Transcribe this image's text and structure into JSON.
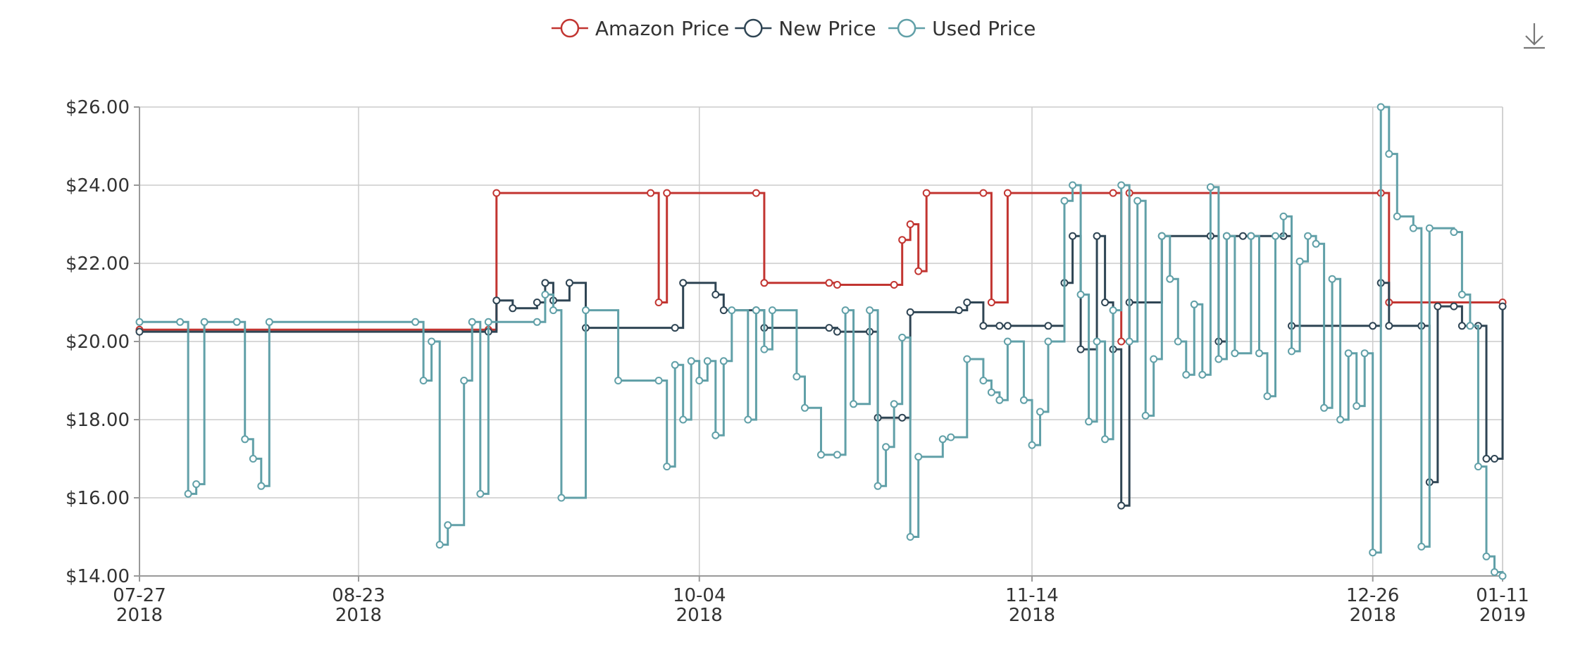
{
  "colors": {
    "amazon": "#c23531",
    "new": "#2f4554",
    "used": "#61a0a8",
    "grid": "#cccccc",
    "axis": "#999999"
  },
  "toolbar": {
    "download_icon": "download-icon"
  },
  "chart_data": {
    "type": "line",
    "step": true,
    "x_type": "date",
    "xlim": [
      "2018-07-27",
      "2019-01-11"
    ],
    "ylim": [
      14,
      26
    ],
    "y_ticks": [
      {
        "value": 14,
        "label": "$14.00"
      },
      {
        "value": 16,
        "label": "$16.00"
      },
      {
        "value": 18,
        "label": "$18.00"
      },
      {
        "value": 20,
        "label": "$20.00"
      },
      {
        "value": 22,
        "label": "$22.00"
      },
      {
        "value": 24,
        "label": "$24.00"
      },
      {
        "value": 26,
        "label": "$26.00"
      }
    ],
    "x_ticks": [
      {
        "date": "2018-07-27",
        "line1": "07-27",
        "line2": "2018"
      },
      {
        "date": "2018-08-23",
        "line1": "08-23",
        "line2": "2018"
      },
      {
        "date": "2018-10-04",
        "line1": "10-04",
        "line2": "2018"
      },
      {
        "date": "2018-11-14",
        "line1": "11-14",
        "line2": "2018"
      },
      {
        "date": "2018-12-26",
        "line1": "12-26",
        "line2": "2018"
      },
      {
        "date": "2019-01-11",
        "line1": "01-11",
        "line2": "2019"
      }
    ],
    "grid": true,
    "legend_position": "top-center",
    "series": [
      {
        "name": "Amazon Price",
        "color_key": "amazon",
        "points": [
          [
            "2018-07-27",
            20.3
          ],
          [
            "2018-09-08",
            20.3
          ],
          [
            "2018-09-09",
            23.8
          ],
          [
            "2018-09-28",
            23.8
          ],
          [
            "2018-09-29",
            21.0
          ],
          [
            "2018-09-30",
            23.8
          ],
          [
            "2018-10-11",
            23.8
          ],
          [
            "2018-10-12",
            21.5
          ],
          [
            "2018-10-20",
            21.5
          ],
          [
            "2018-10-21",
            21.45
          ],
          [
            "2018-10-28",
            21.45
          ],
          [
            "2018-10-29",
            22.6
          ],
          [
            "2018-10-30",
            23.0
          ],
          [
            "2018-10-31",
            21.8
          ],
          [
            "2018-11-01",
            23.8
          ],
          [
            "2018-11-08",
            23.8
          ],
          [
            "2018-11-09",
            21.0
          ],
          [
            "2018-11-11",
            23.8
          ],
          [
            "2018-11-24",
            23.8
          ],
          [
            "2018-11-25",
            20.0
          ],
          [
            "2018-11-26",
            23.8
          ],
          [
            "2018-12-27",
            23.8
          ],
          [
            "2018-12-28",
            21.0
          ],
          [
            "2019-01-11",
            21.0
          ]
        ]
      },
      {
        "name": "New Price",
        "color_key": "new",
        "points": [
          [
            "2018-07-27",
            20.25
          ],
          [
            "2018-09-08",
            20.25
          ],
          [
            "2018-09-09",
            21.05
          ],
          [
            "2018-09-11",
            20.85
          ],
          [
            "2018-09-14",
            21.0
          ],
          [
            "2018-09-15",
            21.5
          ],
          [
            "2018-09-16",
            21.05
          ],
          [
            "2018-09-18",
            21.5
          ],
          [
            "2018-09-20",
            20.35
          ],
          [
            "2018-10-01",
            20.35
          ],
          [
            "2018-10-02",
            21.5
          ],
          [
            "2018-10-06",
            21.2
          ],
          [
            "2018-10-07",
            20.8
          ],
          [
            "2018-10-11",
            20.8
          ],
          [
            "2018-10-12",
            20.35
          ],
          [
            "2018-10-20",
            20.35
          ],
          [
            "2018-10-21",
            20.25
          ],
          [
            "2018-10-25",
            20.25
          ],
          [
            "2018-10-26",
            18.05
          ],
          [
            "2018-10-29",
            18.05
          ],
          [
            "2018-10-30",
            20.75
          ],
          [
            "2018-11-05",
            20.8
          ],
          [
            "2018-11-06",
            21.0
          ],
          [
            "2018-11-08",
            20.4
          ],
          [
            "2018-11-10",
            20.4
          ],
          [
            "2018-11-11",
            20.4
          ],
          [
            "2018-11-16",
            20.4
          ],
          [
            "2018-11-18",
            21.5
          ],
          [
            "2018-11-19",
            22.7
          ],
          [
            "2018-11-20",
            19.8
          ],
          [
            "2018-11-22",
            22.7
          ],
          [
            "2018-11-23",
            21.0
          ],
          [
            "2018-11-24",
            19.8
          ],
          [
            "2018-11-25",
            15.8
          ],
          [
            "2018-11-26",
            21.0
          ],
          [
            "2018-11-30",
            22.7
          ],
          [
            "2018-12-06",
            22.7
          ],
          [
            "2018-12-07",
            20.0
          ],
          [
            "2018-12-08",
            22.7
          ],
          [
            "2018-12-10",
            22.7
          ],
          [
            "2018-12-11",
            22.7
          ],
          [
            "2018-12-15",
            22.7
          ],
          [
            "2018-12-16",
            20.4
          ],
          [
            "2018-12-26",
            20.4
          ],
          [
            "2018-12-27",
            21.5
          ],
          [
            "2018-12-28",
            20.4
          ],
          [
            "2019-01-01",
            20.4
          ],
          [
            "2019-01-02",
            16.4
          ],
          [
            "2019-01-03",
            20.9
          ],
          [
            "2019-01-05",
            20.9
          ],
          [
            "2019-01-06",
            20.4
          ],
          [
            "2019-01-08",
            20.4
          ],
          [
            "2019-01-09",
            17.0
          ],
          [
            "2019-01-10",
            17.0
          ],
          [
            "2019-01-11",
            20.9
          ]
        ]
      },
      {
        "name": "Used Price",
        "color_key": "used",
        "points": [
          [
            "2018-07-27",
            20.5
          ],
          [
            "2018-08-01",
            20.5
          ],
          [
            "2018-08-02",
            16.1
          ],
          [
            "2018-08-03",
            16.35
          ],
          [
            "2018-08-04",
            20.5
          ],
          [
            "2018-08-08",
            20.5
          ],
          [
            "2018-08-09",
            17.5
          ],
          [
            "2018-08-10",
            17.0
          ],
          [
            "2018-08-11",
            16.3
          ],
          [
            "2018-08-12",
            20.5
          ],
          [
            "2018-08-30",
            20.5
          ],
          [
            "2018-08-31",
            19.0
          ],
          [
            "2018-09-01",
            20.0
          ],
          [
            "2018-09-02",
            14.8
          ],
          [
            "2018-09-03",
            15.3
          ],
          [
            "2018-09-05",
            19.0
          ],
          [
            "2018-09-06",
            20.5
          ],
          [
            "2018-09-07",
            16.1
          ],
          [
            "2018-09-08",
            20.5
          ],
          [
            "2018-09-14",
            20.5
          ],
          [
            "2018-09-15",
            21.2
          ],
          [
            "2018-09-16",
            20.8
          ],
          [
            "2018-09-17",
            16.0
          ],
          [
            "2018-09-20",
            20.8
          ],
          [
            "2018-09-24",
            19.0
          ],
          [
            "2018-09-29",
            19.0
          ],
          [
            "2018-09-30",
            16.8
          ],
          [
            "2018-10-01",
            19.4
          ],
          [
            "2018-10-02",
            18.0
          ],
          [
            "2018-10-03",
            19.5
          ],
          [
            "2018-10-04",
            19.0
          ],
          [
            "2018-10-05",
            19.5
          ],
          [
            "2018-10-06",
            17.6
          ],
          [
            "2018-10-07",
            19.5
          ],
          [
            "2018-10-08",
            20.8
          ],
          [
            "2018-10-10",
            18.0
          ],
          [
            "2018-10-11",
            20.8
          ],
          [
            "2018-10-12",
            19.8
          ],
          [
            "2018-10-13",
            20.8
          ],
          [
            "2018-10-16",
            19.1
          ],
          [
            "2018-10-17",
            18.3
          ],
          [
            "2018-10-19",
            17.1
          ],
          [
            "2018-10-21",
            17.1
          ],
          [
            "2018-10-22",
            20.8
          ],
          [
            "2018-10-23",
            18.4
          ],
          [
            "2018-10-25",
            20.8
          ],
          [
            "2018-10-26",
            16.3
          ],
          [
            "2018-10-27",
            17.3
          ],
          [
            "2018-10-28",
            18.4
          ],
          [
            "2018-10-29",
            20.1
          ],
          [
            "2018-10-30",
            15.0
          ],
          [
            "2018-10-31",
            17.05
          ],
          [
            "2018-11-03",
            17.5
          ],
          [
            "2018-11-04",
            17.55
          ],
          [
            "2018-11-06",
            19.55
          ],
          [
            "2018-11-08",
            19.0
          ],
          [
            "2018-11-09",
            18.7
          ],
          [
            "2018-11-10",
            18.5
          ],
          [
            "2018-11-11",
            20.0
          ],
          [
            "2018-11-13",
            18.5
          ],
          [
            "2018-11-14",
            17.35
          ],
          [
            "2018-11-15",
            18.2
          ],
          [
            "2018-11-16",
            20.0
          ],
          [
            "2018-11-18",
            23.6
          ],
          [
            "2018-11-19",
            24.0
          ],
          [
            "2018-11-20",
            21.2
          ],
          [
            "2018-11-21",
            17.95
          ],
          [
            "2018-11-22",
            20.0
          ],
          [
            "2018-11-23",
            17.5
          ],
          [
            "2018-11-24",
            20.8
          ],
          [
            "2018-11-25",
            24.0
          ],
          [
            "2018-11-26",
            20.0
          ],
          [
            "2018-11-27",
            23.6
          ],
          [
            "2018-11-28",
            18.1
          ],
          [
            "2018-11-29",
            19.55
          ],
          [
            "2018-11-30",
            22.7
          ],
          [
            "2018-12-01",
            21.6
          ],
          [
            "2018-12-02",
            20.0
          ],
          [
            "2018-12-03",
            19.15
          ],
          [
            "2018-12-04",
            20.95
          ],
          [
            "2018-12-05",
            19.15
          ],
          [
            "2018-12-06",
            23.95
          ],
          [
            "2018-12-07",
            19.55
          ],
          [
            "2018-12-08",
            22.7
          ],
          [
            "2018-12-09",
            19.7
          ],
          [
            "2018-12-11",
            22.7
          ],
          [
            "2018-12-12",
            19.7
          ],
          [
            "2018-12-13",
            18.6
          ],
          [
            "2018-12-14",
            22.7
          ],
          [
            "2018-12-15",
            23.2
          ],
          [
            "2018-12-16",
            19.75
          ],
          [
            "2018-12-17",
            22.05
          ],
          [
            "2018-12-18",
            22.7
          ],
          [
            "2018-12-19",
            22.5
          ],
          [
            "2018-12-20",
            18.3
          ],
          [
            "2018-12-21",
            21.6
          ],
          [
            "2018-12-22",
            18.0
          ],
          [
            "2018-12-23",
            19.7
          ],
          [
            "2018-12-24",
            18.35
          ],
          [
            "2018-12-25",
            19.7
          ],
          [
            "2018-12-26",
            14.6
          ],
          [
            "2018-12-27",
            26.0
          ],
          [
            "2018-12-28",
            24.8
          ],
          [
            "2018-12-29",
            23.2
          ],
          [
            "2018-12-31",
            22.9
          ],
          [
            "2019-01-01",
            14.75
          ],
          [
            "2019-01-02",
            22.9
          ],
          [
            "2019-01-05",
            22.8
          ],
          [
            "2019-01-06",
            21.2
          ],
          [
            "2019-01-07",
            20.4
          ],
          [
            "2019-01-08",
            16.8
          ],
          [
            "2019-01-09",
            14.5
          ],
          [
            "2019-01-10",
            14.1
          ],
          [
            "2019-01-11",
            14.0
          ]
        ]
      }
    ]
  }
}
